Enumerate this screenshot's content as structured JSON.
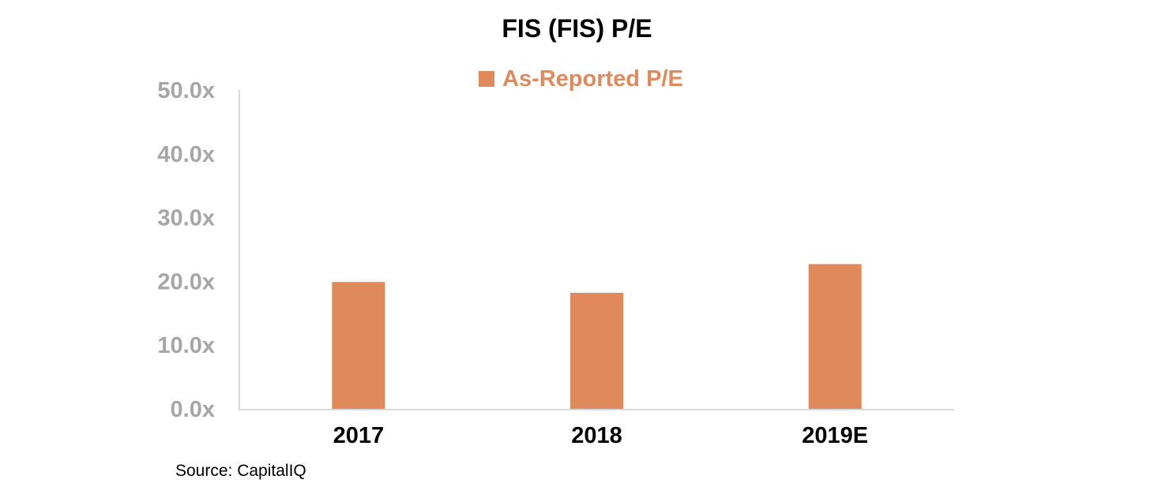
{
  "chart_data": {
    "type": "bar",
    "title": "FIS (FIS) P/E",
    "categories": [
      "2017",
      "2018",
      "2019E"
    ],
    "series": [
      {
        "name": "As-Reported P/E",
        "values": [
          19.9,
          18.2,
          22.7
        ],
        "color": "#e08a5c"
      }
    ],
    "yticks": [
      "0.0x",
      "10.0x",
      "20.0x",
      "30.0x",
      "40.0x",
      "50.0x"
    ],
    "ylim": [
      0,
      50
    ],
    "legend_position": "top-center",
    "grid": false
  },
  "colors": {
    "bar": "#e08a5c",
    "axis_line": "#d9d9d9",
    "y_tick_text": "#a6a6a6",
    "x_tick_text": "#000000",
    "legend_text": "#e08a5c"
  },
  "source": "Source: CapitalIQ"
}
